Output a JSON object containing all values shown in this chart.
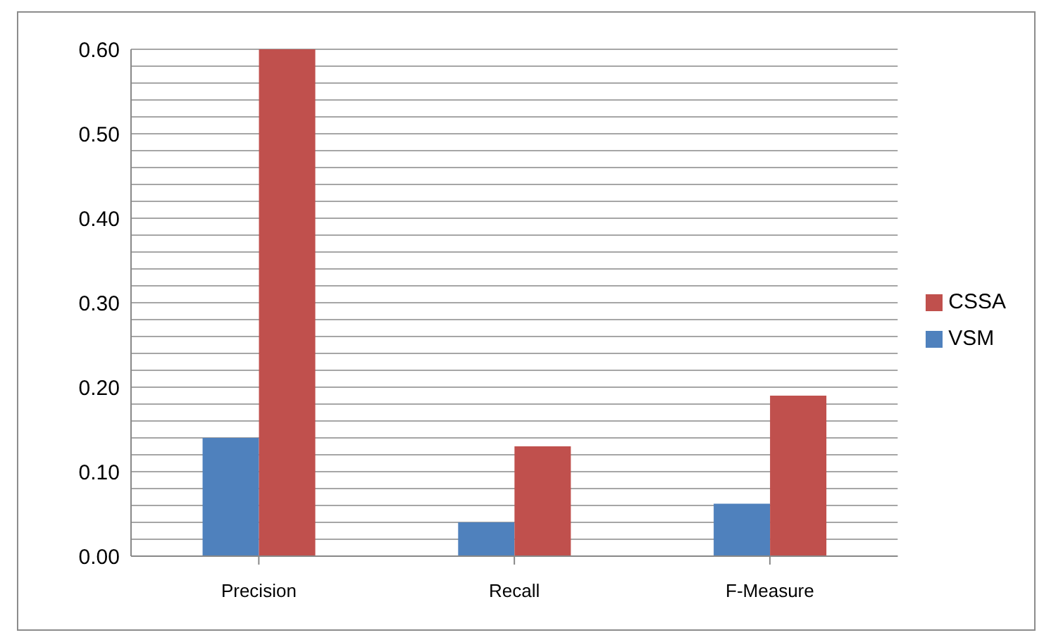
{
  "chart_data": {
    "type": "bar",
    "categories": [
      "Precision",
      "Recall",
      "F-Measure"
    ],
    "series": [
      {
        "name": "VSM",
        "color": "#4f81bd",
        "values": [
          0.14,
          0.04,
          0.062
        ]
      },
      {
        "name": "CSSA",
        "color": "#c0504d",
        "values": [
          0.6,
          0.13,
          0.19
        ]
      }
    ],
    "ylim": [
      0,
      0.6
    ],
    "yticks": [
      {
        "value": 0,
        "label": "0.00"
      },
      {
        "value": 0.02,
        "label": null
      },
      {
        "value": 0.04,
        "label": null
      },
      {
        "value": 0.06,
        "label": null
      },
      {
        "value": 0.08,
        "label": null
      },
      {
        "value": 0.1,
        "label": "0.10"
      },
      {
        "value": 0.12,
        "label": null
      },
      {
        "value": 0.14,
        "label": null
      },
      {
        "value": 0.16,
        "label": null
      },
      {
        "value": 0.18,
        "label": null
      },
      {
        "value": 0.2,
        "label": "0.20"
      },
      {
        "value": 0.22,
        "label": null
      },
      {
        "value": 0.24,
        "label": null
      },
      {
        "value": 0.26,
        "label": null
      },
      {
        "value": 0.28,
        "label": null
      },
      {
        "value": 0.3,
        "label": "0.30"
      },
      {
        "value": 0.32,
        "label": null
      },
      {
        "value": 0.34,
        "label": null
      },
      {
        "value": 0.36,
        "label": null
      },
      {
        "value": 0.38,
        "label": null
      },
      {
        "value": 0.4,
        "label": "0.40"
      },
      {
        "value": 0.42,
        "label": null
      },
      {
        "value": 0.44,
        "label": null
      },
      {
        "value": 0.46,
        "label": null
      },
      {
        "value": 0.48,
        "label": null
      },
      {
        "value": 0.5,
        "label": "0.50"
      },
      {
        "value": 0.52,
        "label": null
      },
      {
        "value": 0.54,
        "label": null
      },
      {
        "value": 0.56,
        "label": null
      },
      {
        "value": 0.58,
        "label": null
      },
      {
        "value": 0.6,
        "label": "0.60"
      }
    ],
    "grid": "y",
    "legend": "right"
  }
}
